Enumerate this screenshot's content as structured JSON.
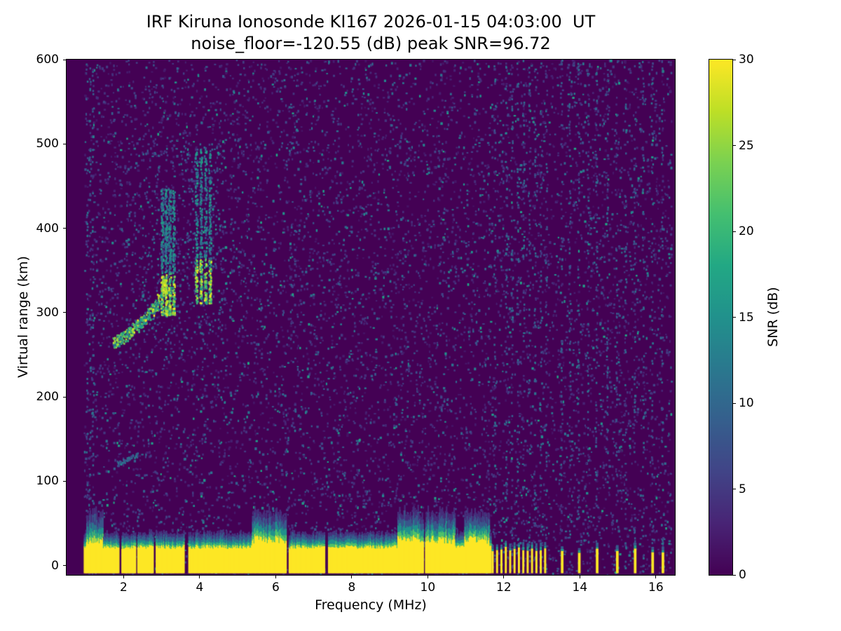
{
  "chart_data": {
    "type": "heatmap",
    "title_line1": "IRF Kiruna Ionosonde KI167 2026-01-15 04:03:00  UT",
    "title_line2": "noise_floor=-120.55 (dB) peak SNR=96.72",
    "station": "IRF Kiruna Ionosonde KI167",
    "timestamp_ut": "2026-01-15 04:03:00 UT",
    "noise_floor_db": -120.55,
    "peak_snr_db": 96.72,
    "xlabel": "Frequency (MHz)",
    "ylabel": "Virtual range (km)",
    "colorbar_label": "SNR (dB)",
    "xlim": [
      0.5,
      16.5
    ],
    "ylim": [
      -11,
      600
    ],
    "clim": [
      0,
      30
    ],
    "xticks": [
      2,
      4,
      6,
      8,
      10,
      12,
      14,
      16
    ],
    "yticks": [
      0,
      100,
      200,
      300,
      400,
      500,
      600
    ],
    "colorbar_ticks": [
      0,
      5,
      10,
      15,
      20,
      25,
      30
    ],
    "colormap": "viridis",
    "colormap_stops": [
      "#440154",
      "#482475",
      "#414487",
      "#355f8d",
      "#2a788e",
      "#21918c",
      "#22a884",
      "#44bf70",
      "#7ad151",
      "#bddf26",
      "#fde725"
    ],
    "grid": false,
    "features": {
      "background_snr_db": 0,
      "noise": {
        "speckle_count": 9000,
        "f_min": 0.95,
        "f_max": 16.4
      },
      "noise_columns": {
        "frequencies": [
          1.02,
          1.1,
          1.18,
          11.75,
          12.05,
          12.2,
          12.35,
          12.5,
          12.65,
          12.8,
          12.95,
          13.1,
          13.5,
          13.72,
          13.95,
          14.2,
          14.42,
          14.7,
          14.95,
          15.18,
          15.42,
          15.65,
          15.88,
          16.15
        ],
        "dots_per_column": 55
      },
      "ground_clutter": {
        "f_min": 0.95,
        "f_max": 11.65,
        "r_bottom_km": -9,
        "yellow_top_km": 20,
        "gaps": [
          {
            "f": 1.9,
            "w": 0.06
          },
          {
            "f": 2.33,
            "w": 0.04
          },
          {
            "f": 2.8,
            "w": 0.07
          },
          {
            "f": 3.63,
            "w": 0.1
          },
          {
            "f": 6.3,
            "w": 0.07
          },
          {
            "f": 7.32,
            "w": 0.07
          },
          {
            "f": 9.9,
            "w": 0.04
          }
        ],
        "tall_regions": [
          [
            1.0,
            1.45
          ],
          [
            5.35,
            6.28
          ],
          [
            9.2,
            10.7
          ],
          [
            10.95,
            11.6
          ]
        ]
      },
      "stripe_band": {
        "f_min": 11.68,
        "f_max": 13.15,
        "period": 0.115,
        "stripe_width": 0.055,
        "yellow_top_km": 19
      },
      "isolated_stripes": {
        "frequencies": [
          13.5,
          13.95,
          14.42,
          14.95,
          15.42,
          15.88,
          16.15
        ],
        "width": 0.07,
        "yellow_top_km": 18
      },
      "e_trace": {
        "f_min": 1.82,
        "f_max": 2.38,
        "r_start_km": 121,
        "r_end_km": 133,
        "dots": 55
      },
      "f_trace": {
        "points": [
          [
            1.75,
            266
          ],
          [
            1.85,
            268
          ],
          [
            1.95,
            271
          ],
          [
            2.05,
            274
          ],
          [
            2.15,
            277
          ],
          [
            2.25,
            281
          ],
          [
            2.35,
            285
          ],
          [
            2.45,
            289
          ],
          [
            2.55,
            294
          ],
          [
            2.65,
            299
          ],
          [
            2.75,
            304
          ],
          [
            2.85,
            310
          ],
          [
            2.92,
            316
          ]
        ],
        "dots_per_point": 24
      },
      "spread_branches": [
        {
          "columns": [
            3.0,
            3.1,
            3.2,
            3.3
          ],
          "r_min": 298,
          "r_max": 448,
          "dots": 680,
          "bright_r_max": 348
        },
        {
          "columns": [
            3.9,
            4.02,
            4.14,
            4.26
          ],
          "r_min": 312,
          "r_max": 495,
          "dots": 580,
          "bright_r_max": 365
        }
      ],
      "bright_blob": {
        "f": 3.06,
        "r": 332,
        "dots": 45
      },
      "echo_fuzz": {
        "f_min": 2.2,
        "f_max": 4.6,
        "r_min": 240,
        "r_max": 515,
        "dots": 280
      }
    }
  }
}
